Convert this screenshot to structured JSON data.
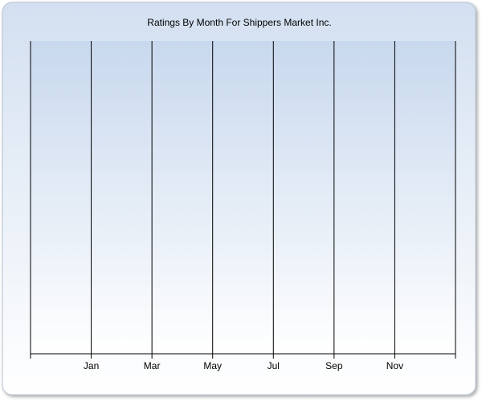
{
  "chart_data": {
    "type": "line",
    "title": "Ratings By Month For Shippers Market Inc.",
    "categories": [
      "Jan",
      "Mar",
      "May",
      "Jul",
      "Sep",
      "Nov"
    ],
    "grid": true
  }
}
